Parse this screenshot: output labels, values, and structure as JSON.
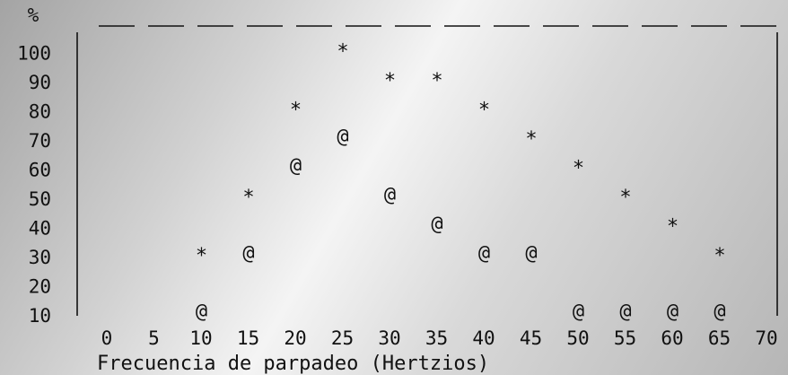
{
  "chart_data": {
    "type": "scatter",
    "title": "",
    "xlabel": "Frecuencia de parpadeo (Hertzios)",
    "ylabel": "%",
    "xlim": [
      0,
      70
    ],
    "ylim": [
      10,
      100
    ],
    "x_ticks": [
      "0",
      "5",
      "10",
      "15",
      "20",
      "25",
      "30",
      "35",
      "40",
      "45",
      "50",
      "55",
      "60",
      "65",
      "70"
    ],
    "y_ticks": [
      "100",
      "90",
      "80",
      "70",
      "60",
      "50",
      "40",
      "30",
      "20",
      "10"
    ],
    "grid": false,
    "series": [
      {
        "marker": "*",
        "points": [
          {
            "x": 5,
            "y": 30
          },
          {
            "x": 10,
            "y": 50
          },
          {
            "x": 15,
            "y": 80
          },
          {
            "x": 20,
            "y": 100
          },
          {
            "x": 25,
            "y": 90
          },
          {
            "x": 30,
            "y": 90
          },
          {
            "x": 35,
            "y": 80
          },
          {
            "x": 40,
            "y": 70
          },
          {
            "x": 45,
            "y": 60
          },
          {
            "x": 50,
            "y": 50
          },
          {
            "x": 55,
            "y": 40
          },
          {
            "x": 60,
            "y": 30
          }
        ]
      },
      {
        "marker": "@",
        "points": [
          {
            "x": 5,
            "y": 10
          },
          {
            "x": 10,
            "y": 30
          },
          {
            "x": 15,
            "y": 60
          },
          {
            "x": 20,
            "y": 70
          },
          {
            "x": 25,
            "y": 50
          },
          {
            "x": 30,
            "y": 40
          },
          {
            "x": 35,
            "y": 30
          },
          {
            "x": 40,
            "y": 30
          },
          {
            "x": 45,
            "y": 10
          },
          {
            "x": 50,
            "y": 10
          },
          {
            "x": 55,
            "y": 10
          },
          {
            "x": 60,
            "y": 10
          }
        ]
      }
    ]
  }
}
